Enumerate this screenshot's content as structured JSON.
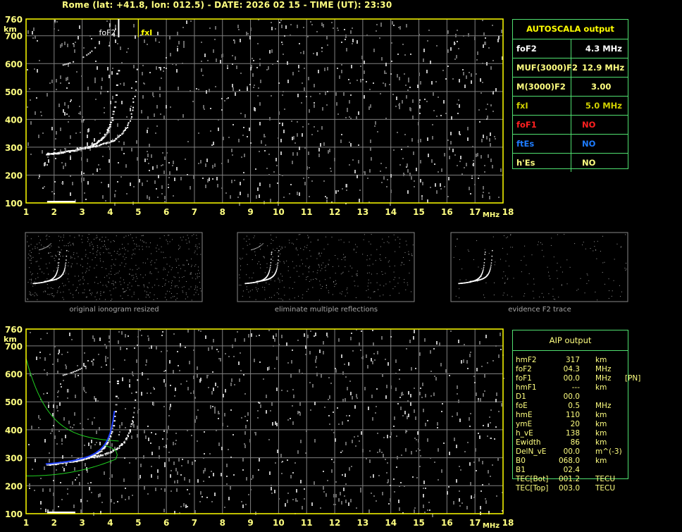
{
  "header": {
    "title": "Rome (lat: +41.8, lon: 012.5) - DATE: 2026 02 15 - TIME (UT): 23:30"
  },
  "axes": {
    "freq_ticks": [
      "1",
      "2",
      "3",
      "4",
      "5",
      "6",
      "7",
      "8",
      "9",
      "10",
      "11",
      "12",
      "13",
      "14",
      "15",
      "16",
      "17",
      "18"
    ],
    "freq_unit": "MHz",
    "height_ticks": [
      "760",
      "700",
      "600",
      "500",
      "400",
      "300",
      "200",
      "100"
    ],
    "height_unit": "km",
    "freq_range_mhz": [
      1,
      18
    ],
    "height_range_km": [
      100,
      760
    ]
  },
  "markers": {
    "fof2_label": "foF2",
    "fof2_mhz": 4.3,
    "fxi_label": "fxI",
    "fxi_mhz": 5.0
  },
  "autoscala": {
    "title": "AUTOSCALA output",
    "rows": [
      {
        "key": "foF2",
        "value": "4.3 MHz",
        "color": "#ffffff"
      },
      {
        "key": "MUF(3000)F2",
        "value": "12.9 MHz",
        "color": "#ffff80"
      },
      {
        "key": "M(3000)F2",
        "value": "3.00",
        "color": "#ffff80"
      },
      {
        "key": "fxI",
        "value": "5.0 MHz",
        "color": "#d0d000"
      },
      {
        "key": "foF1",
        "value": "NO",
        "color": "#ff2020"
      },
      {
        "key": "ftEs",
        "value": "NO",
        "color": "#1e7cff"
      },
      {
        "key": "h'Es",
        "value": "NO",
        "color": "#ffff80"
      }
    ]
  },
  "thumbnails": [
    {
      "caption": "original ionogram resized"
    },
    {
      "caption": "eliminate multiple reflections"
    },
    {
      "caption": "evidence F2 trace"
    }
  ],
  "aip": {
    "title": "AIP output",
    "rows": [
      {
        "key": "hmF2",
        "value": "317",
        "unit": "km",
        "extra": ""
      },
      {
        "key": "foF2",
        "value": "04.3",
        "unit": "MHz",
        "extra": ""
      },
      {
        "key": "foF1",
        "value": "00.0",
        "unit": "MHz",
        "extra": "[PN]"
      },
      {
        "key": "hmF1",
        "value": "---",
        "unit": "km",
        "extra": ""
      },
      {
        "key": "D1",
        "value": "00.0",
        "unit": "",
        "extra": ""
      },
      {
        "key": "foE",
        "value": "0.5",
        "unit": "MHz",
        "extra": ""
      },
      {
        "key": "hmE",
        "value": "110",
        "unit": "km",
        "extra": ""
      },
      {
        "key": "ymE",
        "value": "20",
        "unit": "km",
        "extra": ""
      },
      {
        "key": "h_vE",
        "value": "138",
        "unit": "km",
        "extra": ""
      },
      {
        "key": "Ewidth",
        "value": "86",
        "unit": "km",
        "extra": ""
      },
      {
        "key": "DelN_vE",
        "value": "00.0",
        "unit": "m^(-3)",
        "extra": ""
      },
      {
        "key": "B0",
        "value": "068.0",
        "unit": "km",
        "extra": ""
      },
      {
        "key": "B1",
        "value": "02.4",
        "unit": "",
        "extra": ""
      },
      {
        "key": "TEC[Bot]",
        "value": "001.2",
        "unit": "TECU",
        "extra": ""
      },
      {
        "key": "TEC[Top]",
        "value": "003.0",
        "unit": "TECU",
        "extra": ""
      }
    ]
  },
  "colors": {
    "frame": "#ffff00",
    "grid": "#808080",
    "table_border": "#50e070",
    "trace": "#ffffff",
    "model_profile": "#20d020",
    "aip_trace": "#2040ff"
  }
}
